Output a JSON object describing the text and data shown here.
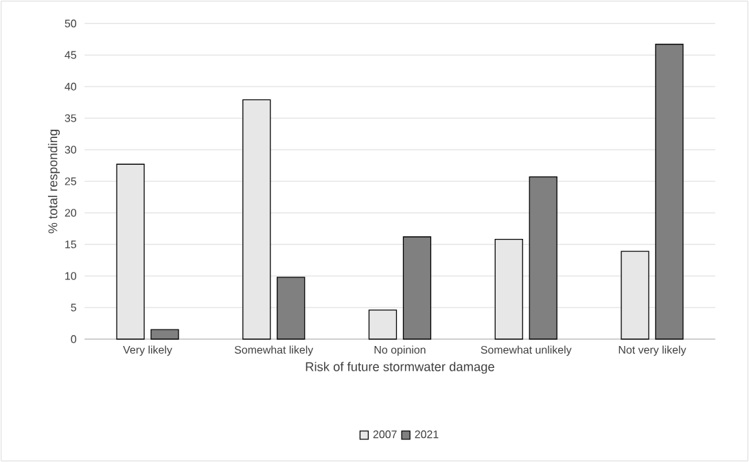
{
  "chart_data": {
    "type": "bar",
    "xlabel": "Risk of future stormwater damage",
    "ylabel": "% total responding",
    "categories": [
      "Very likely",
      "Somewhat likely",
      "No opinion",
      "Somewhat unlikely",
      "Not very likely"
    ],
    "series": [
      {
        "name": "2007",
        "color": "#e7e7e7",
        "values": [
          27.7,
          37.9,
          4.6,
          15.8,
          13.9
        ]
      },
      {
        "name": "2021",
        "color": "#808080",
        "values": [
          1.5,
          9.8,
          16.2,
          25.7,
          46.7
        ]
      }
    ],
    "ylim": [
      0,
      50
    ],
    "yticks": [
      0,
      5,
      10,
      15,
      20,
      25,
      30,
      35,
      40,
      45,
      50
    ],
    "grid": "y",
    "legend": "bottom"
  }
}
